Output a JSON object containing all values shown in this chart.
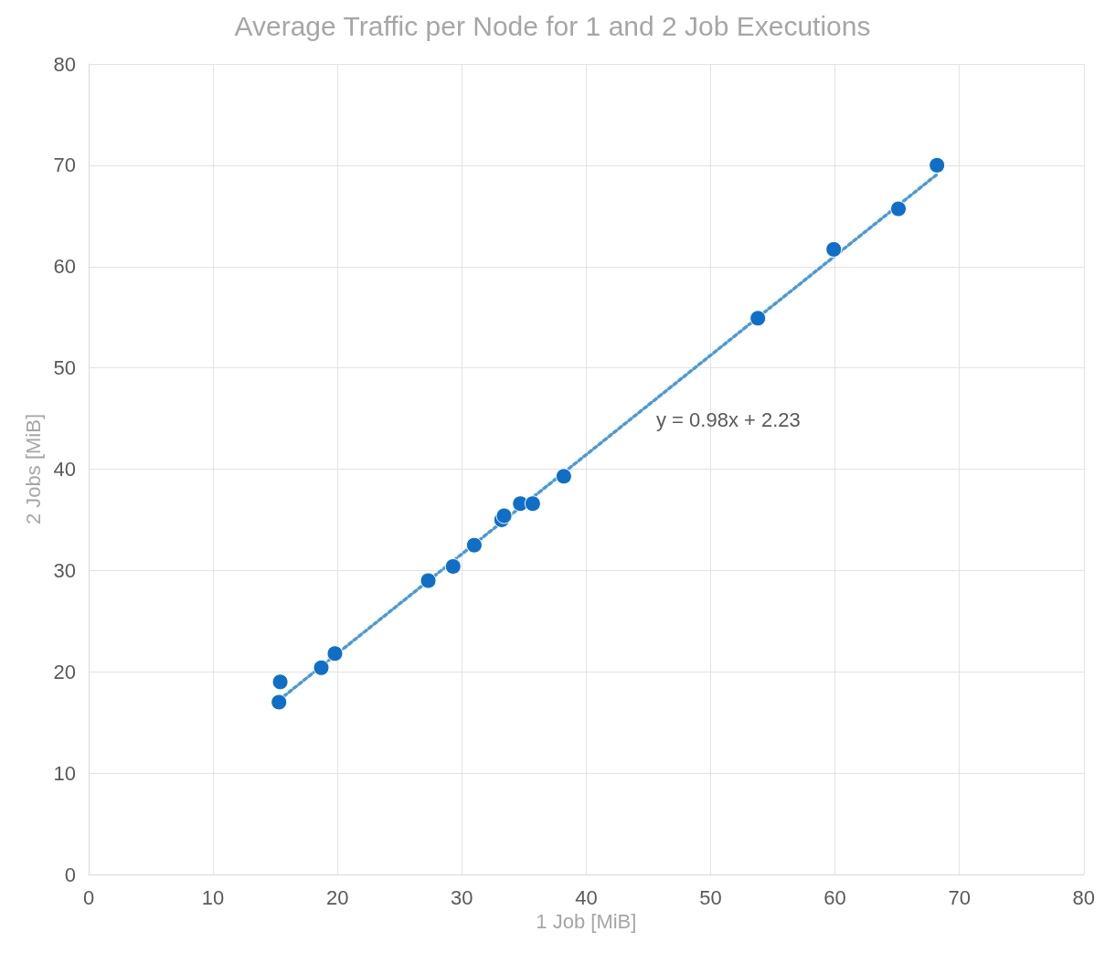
{
  "chart_data": {
    "type": "scatter",
    "title": "Average Traffic per Node for 1 and 2 Job Executions",
    "xlabel": "1 Job [MiB]",
    "ylabel": "2 Jobs [MiB]",
    "x": [
      15.3,
      15.4,
      18.7,
      19.8,
      27.3,
      29.3,
      31.0,
      33.2,
      33.4,
      34.7,
      35.7,
      38.2,
      53.8,
      59.9,
      65.1,
      68.2
    ],
    "series": [
      {
        "color": "#0f6fc6",
        "marker": "circle",
        "values": [
          17.0,
          19.0,
          20.4,
          21.8,
          29.0,
          30.4,
          32.5,
          35.0,
          35.4,
          36.6,
          36.6,
          39.3,
          54.9,
          61.7,
          65.7,
          70.0
        ]
      },
      {
        "type": "line",
        "color": "#4a9ad8",
        "line_style": "dotted",
        "marker": "none",
        "x": [
          15.3,
          68.2
        ],
        "values": [
          17.2,
          69.1
        ]
      }
    ],
    "annotations": [
      "y = 0.98x + 2.23"
    ],
    "xlim": [
      0,
      80
    ],
    "xticks": [
      0,
      10,
      20,
      30,
      40,
      50,
      60,
      70,
      80
    ],
    "ylim": [
      0,
      80
    ],
    "yticks": [
      0,
      10,
      20,
      30,
      40,
      50,
      60,
      70,
      80
    ],
    "grid": true
  }
}
